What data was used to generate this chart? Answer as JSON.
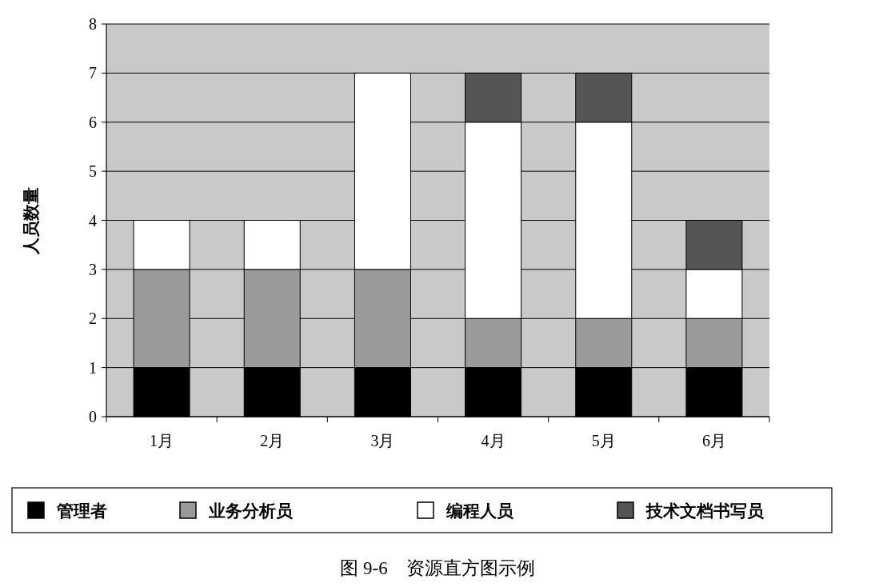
{
  "chart_data": {
    "type": "bar",
    "stacked": true,
    "title": "图 9-6　资源直方图示例",
    "ylabel": "人员数量",
    "categories": [
      "1月",
      "2月",
      "3月",
      "4月",
      "5月",
      "6月"
    ],
    "series": [
      {
        "name": "管理者",
        "color": "#000000",
        "values": [
          1,
          1,
          1,
          1,
          1,
          1
        ]
      },
      {
        "name": "业务分析员",
        "color": "#9a9a9a",
        "values": [
          2,
          2,
          2,
          1,
          1,
          1
        ]
      },
      {
        "name": "编程人员",
        "color": "#ffffff",
        "values": [
          1,
          1,
          4,
          4,
          4,
          1
        ]
      },
      {
        "name": "技术文档书写员",
        "color": "#555555",
        "values": [
          0,
          0,
          0,
          1,
          1,
          1
        ]
      }
    ],
    "ylim": [
      0,
      8
    ],
    "yticks": [
      0,
      1,
      2,
      3,
      4,
      5,
      6,
      7,
      8
    ],
    "grid": "y",
    "legend": "bottom"
  }
}
